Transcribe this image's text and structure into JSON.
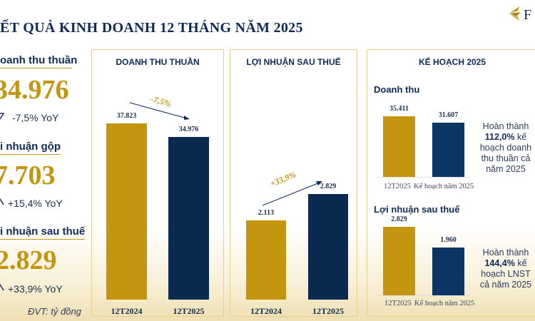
{
  "title": "ẾT QUẢ KINH DOANH 12 THÁNG NĂM 2025",
  "logo": {
    "text": "F"
  },
  "colors": {
    "gold": "#c4960f",
    "navy": "#0b2a4f"
  },
  "summary": [
    {
      "label": "oanh thu thuần",
      "value": "34.976",
      "yoy": "-7,5% YoY",
      "icon": "down-arrow-icon"
    },
    {
      "label": "i nhuận gộp",
      "value": "7.703",
      "yoy": "+15,4% YoY",
      "icon": "up-arrow-icon"
    },
    {
      "label": "i nhuận sau thuế",
      "value": "2.829",
      "yoy": "+33,9% YoY",
      "icon": "up-arrow-icon"
    }
  ],
  "unit": "ĐVT: tỷ đồng",
  "revenue_panel": {
    "title": "DOANH THU THUẦN",
    "change": "-7,5%",
    "categories": [
      "12T2024",
      "12T2025"
    ],
    "values": [
      37823,
      34976
    ],
    "labels": [
      "37.823",
      "34.976"
    ]
  },
  "profit_panel": {
    "title": "LỢI NHUẬN SAU THUẾ",
    "change": "+33,9%",
    "categories": [
      "12T2024",
      "12T2025"
    ],
    "values": [
      2113,
      2829
    ],
    "labels": [
      "2.113",
      "2.829"
    ]
  },
  "plan_panel": {
    "title": "KẾ HOẠCH 2025",
    "revenue": {
      "title": "Doanh thu",
      "categories": [
        "12T2025",
        "Kế hoạch năm 2025"
      ],
      "values": [
        35411,
        31607
      ],
      "labels": [
        "35.411",
        "31.607"
      ],
      "note_pre": "Hoàn thành",
      "note_pct": "112,0%",
      "note_post": "kế hoạch doanh thu thuần cả năm 2025"
    },
    "profit": {
      "title": "Lợi nhuận sau thuế",
      "categories": [
        "12T2025",
        "Kế hoạch năm 2025"
      ],
      "values": [
        2829,
        1960
      ],
      "labels": [
        "2.829",
        "1.960"
      ],
      "note_pre": "Hoàn thành",
      "note_pct": "144,4%",
      "note_post": "kế hoạch LNST cả năm 2025"
    }
  }
}
